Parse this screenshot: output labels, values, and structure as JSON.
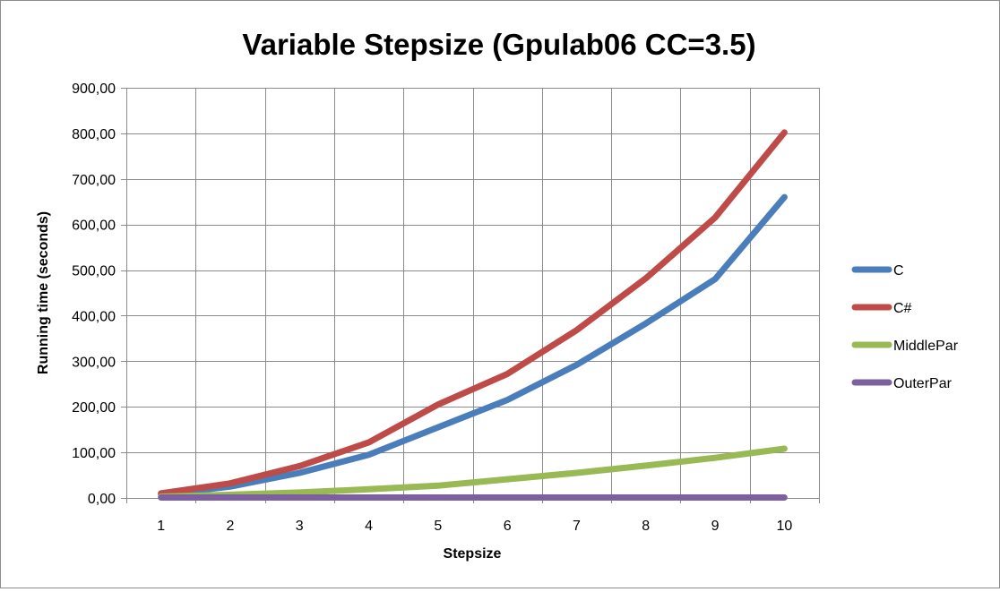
{
  "chart_data": {
    "type": "line",
    "title": "Variable Stepsize (Gpulab06 CC=3.5)",
    "xlabel": "Stepsize",
    "ylabel": "Running time (seconds)",
    "categories": [
      "1",
      "2",
      "3",
      "4",
      "5",
      "6",
      "7",
      "8",
      "9",
      "10"
    ],
    "y_ticks": [
      "0,00",
      "100,00",
      "200,00",
      "300,00",
      "400,00",
      "500,00",
      "600,00",
      "700,00",
      "800,00",
      "900,00"
    ],
    "ylim": [
      0,
      900
    ],
    "grid": true,
    "legend_position": "right",
    "series": [
      {
        "name": "C",
        "color": "#4a7ebb",
        "values": [
          7,
          25,
          55,
          95,
          155,
          215,
          292,
          383,
          480,
          660
        ]
      },
      {
        "name": "C#",
        "color": "#be4b48",
        "values": [
          10,
          32,
          70,
          122,
          205,
          272,
          368,
          482,
          615,
          802
        ]
      },
      {
        "name": "MiddlePar",
        "color": "#98b954",
        "values": [
          3,
          7,
          12,
          19,
          27,
          41,
          55,
          71,
          88,
          108
        ]
      },
      {
        "name": "OuterPar",
        "color": "#7d60a0",
        "values": [
          1,
          1,
          1,
          1,
          1,
          1,
          1,
          1,
          1,
          1
        ]
      }
    ]
  }
}
